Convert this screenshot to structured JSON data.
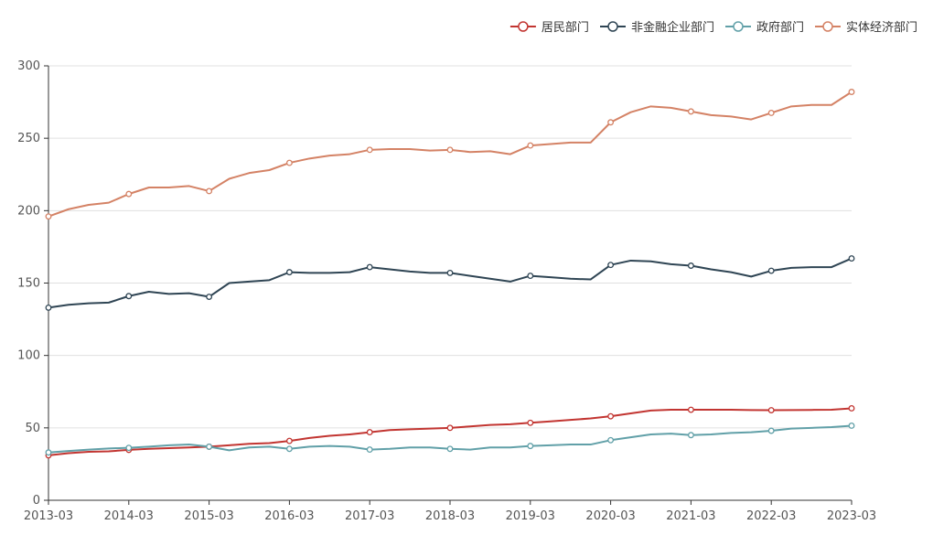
{
  "chart_data": {
    "type": "line",
    "title": "",
    "xlabel": "",
    "ylabel": "",
    "ylim": [
      0,
      300
    ],
    "yticks": [
      0,
      50,
      100,
      150,
      200,
      250,
      300
    ],
    "grid": true,
    "legend_position": "top-right",
    "x_tick_labels": [
      "2013-03",
      "2014-03",
      "2015-03",
      "2016-03",
      "2017-03",
      "2018-03",
      "2019-03",
      "2020-03",
      "2021-03",
      "2022-03",
      "2023-03"
    ],
    "x": [
      "2013-03",
      "2013-06",
      "2013-09",
      "2013-12",
      "2014-03",
      "2014-06",
      "2014-09",
      "2014-12",
      "2015-03",
      "2015-06",
      "2015-09",
      "2015-12",
      "2016-03",
      "2016-06",
      "2016-09",
      "2016-12",
      "2017-03",
      "2017-06",
      "2017-09",
      "2017-12",
      "2018-03",
      "2018-06",
      "2018-09",
      "2018-12",
      "2019-03",
      "2019-06",
      "2019-09",
      "2019-12",
      "2020-03",
      "2020-06",
      "2020-09",
      "2020-12",
      "2021-03",
      "2021-06",
      "2021-09",
      "2021-12",
      "2022-03",
      "2022-06",
      "2022-09",
      "2022-12",
      "2023-03"
    ],
    "series": [
      {
        "name": "居民部门",
        "color": "#c23531",
        "values": [
          31,
          32.5,
          33.5,
          33.8,
          34.8,
          35.5,
          36,
          36.5,
          37,
          38,
          39,
          39.5,
          41,
          43,
          44.5,
          45.5,
          47,
          48.5,
          49,
          49.5,
          50,
          51,
          52,
          52.5,
          53.5,
          54.5,
          55.5,
          56.5,
          58,
          60,
          62,
          62.5,
          62.5,
          62.5,
          62.5,
          62.3,
          62.2,
          62.3,
          62.4,
          62.5,
          63.5
        ]
      },
      {
        "name": "非金融企业部门",
        "color": "#2f4554",
        "values": [
          133,
          135,
          136,
          136.5,
          141,
          144,
          142.5,
          143,
          140.5,
          150,
          151,
          152,
          157.5,
          157,
          157,
          157.5,
          161,
          159.5,
          158,
          157,
          157,
          155,
          153,
          151,
          155,
          154,
          153,
          152.5,
          162.5,
          165.5,
          165,
          163,
          162,
          159.5,
          157.5,
          154.5,
          158.5,
          160.5,
          161,
          161,
          167
        ]
      },
      {
        "name": "政府部门",
        "color": "#61a0a8",
        "values": [
          33,
          34,
          35,
          35.8,
          36.2,
          37,
          38,
          38.5,
          37,
          34.5,
          36.5,
          37,
          35.5,
          37,
          37.5,
          37,
          35,
          35.5,
          36.5,
          36.5,
          35.5,
          35,
          36.5,
          36.5,
          37.5,
          38,
          38.5,
          38.5,
          41.5,
          43.5,
          45.5,
          46,
          45,
          45.5,
          46.5,
          47,
          48,
          49.5,
          50,
          50.5,
          51.5
        ]
      },
      {
        "name": "实体经济部门",
        "color": "#d48265",
        "values": [
          196,
          201,
          204,
          205.5,
          211.5,
          216,
          216,
          217,
          213.5,
          222,
          226,
          228,
          233,
          236,
          238,
          239,
          242,
          242.5,
          242.5,
          241.5,
          242,
          240.5,
          241,
          239,
          245,
          246,
          247,
          247,
          261,
          268,
          272,
          271,
          268.5,
          266,
          265,
          263,
          267.5,
          272,
          273,
          273,
          282
        ]
      }
    ],
    "marker_every": 4
  }
}
